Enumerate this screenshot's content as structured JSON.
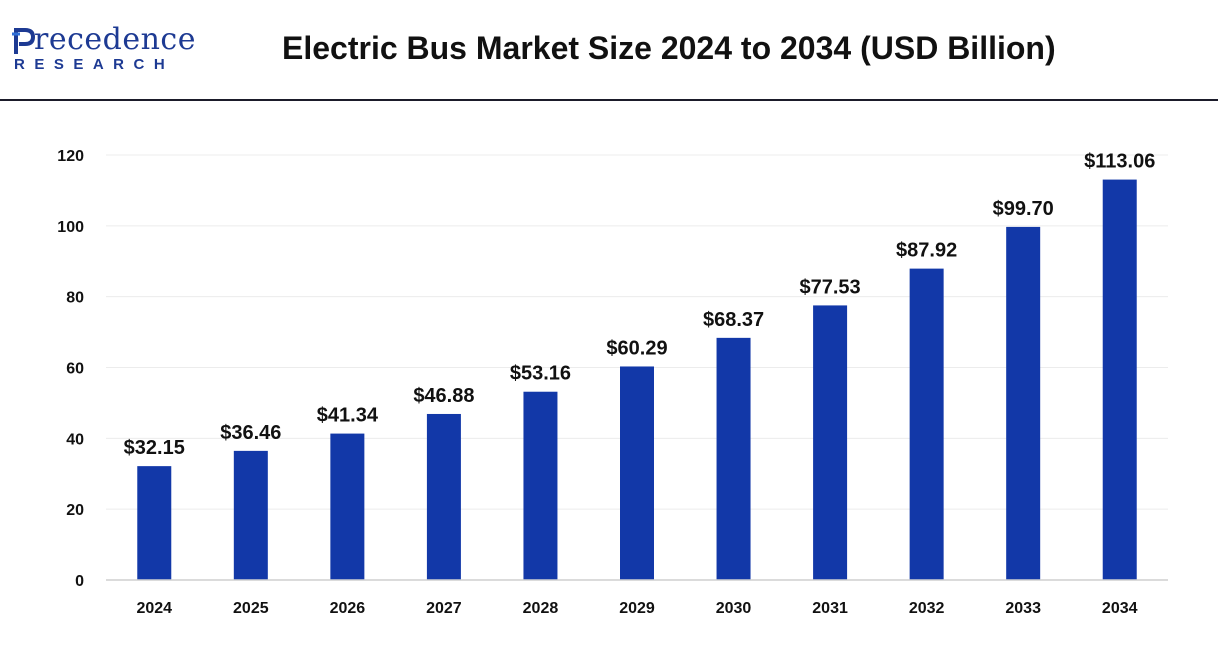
{
  "brand": {
    "logo_name": "recedence",
    "logo_sub": "RESEARCH",
    "logo_icon": "precedence-p-logo-icon",
    "color": "#1d3a93"
  },
  "chart_data": {
    "type": "bar",
    "title": "Electric Bus Market Size 2024 to 2034 (USD Billion)",
    "xlabel": "",
    "ylabel": "",
    "categories": [
      "2024",
      "2025",
      "2026",
      "2027",
      "2028",
      "2029",
      "2030",
      "2031",
      "2032",
      "2033",
      "2034"
    ],
    "values": [
      32.15,
      36.46,
      41.34,
      46.88,
      53.16,
      60.29,
      68.37,
      77.53,
      87.92,
      99.7,
      113.06
    ],
    "data_labels": [
      "$32.15",
      "$36.46",
      "$41.34",
      "$46.88",
      "$53.16",
      "$60.29",
      "$68.37",
      "$77.53",
      "$87.92",
      "$99.70",
      "$113.06"
    ],
    "yticks": [
      0,
      20,
      40,
      60,
      80,
      100,
      120
    ],
    "ylim": [
      0,
      120
    ],
    "grid": true,
    "legend": "none",
    "bar_color": "#1238a8"
  }
}
